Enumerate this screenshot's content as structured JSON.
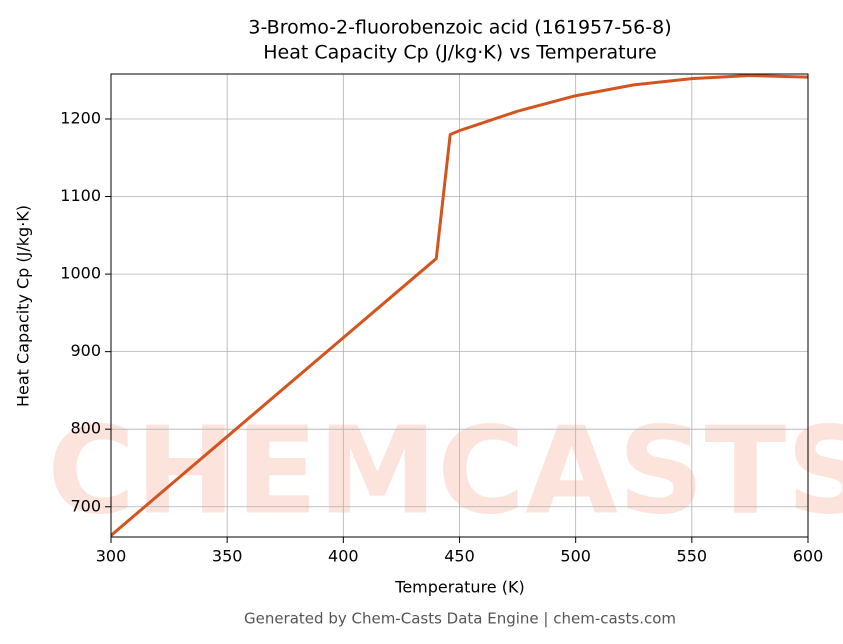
{
  "chart_data": {
    "type": "line",
    "title": "3-Bromo-2-fluorobenzoic acid (161957-56-8)",
    "subtitle": "Heat Capacity Cp (J/kg·K) vs Temperature",
    "x_label": "Temperature (K)",
    "y_label": "Heat Capacity Cp (J/kg·K)",
    "footer": "Generated by Chem-Casts Data Engine | chem-casts.com",
    "watermark": "CHEMCASTS",
    "x": [
      300,
      440,
      446,
      450,
      475,
      500,
      525,
      550,
      575,
      600
    ],
    "series": [
      {
        "name": "Heat Capacity Cp",
        "color": "#d4541f",
        "values": [
          663,
          1020,
          1180,
          1185,
          1210,
          1230,
          1244,
          1252,
          1256,
          1254
        ]
      }
    ],
    "xlim": [
      300,
      600
    ],
    "xticks": [
      300,
      350,
      400,
      450,
      500,
      550,
      600
    ],
    "ylim": [
      661,
      1258
    ],
    "yticks": [
      700,
      800,
      900,
      1000,
      1100,
      1200
    ],
    "grid": true
  }
}
